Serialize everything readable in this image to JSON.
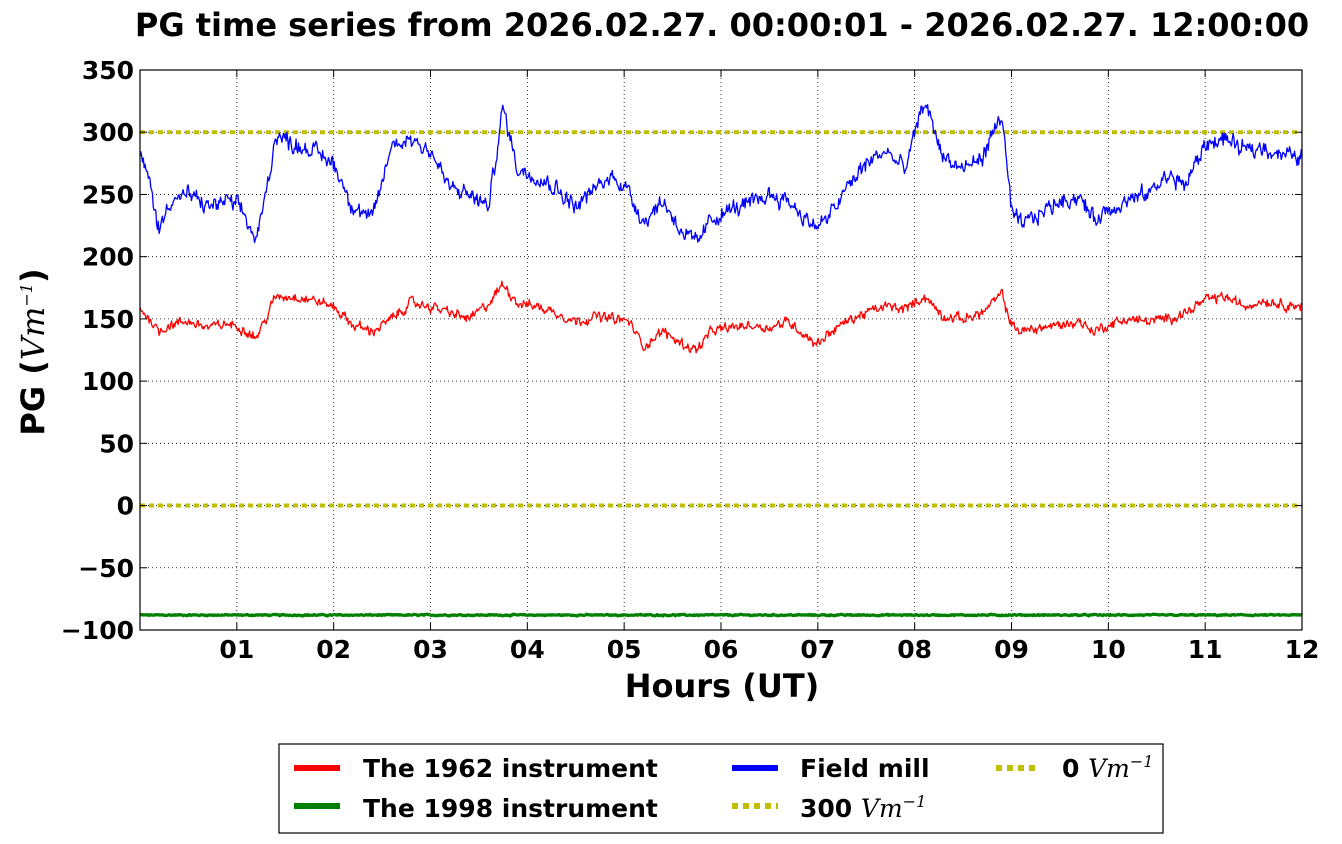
{
  "chart_data": {
    "type": "line",
    "title": "PG time series from 2026.02.27. 00:00:01 - 2026.02.27. 12:00:00",
    "xlabel": "Hours (UT)",
    "ylabel_prefix": "PG (",
    "ylabel_unit_base": "Vm",
    "ylabel_unit_exp": "−1",
    "ylabel_suffix": ")",
    "xlim": [
      0,
      12
    ],
    "ylim": [
      -100,
      350
    ],
    "x_ticks": [
      1,
      2,
      3,
      4,
      5,
      6,
      7,
      8,
      9,
      10,
      11,
      12
    ],
    "x_tick_labels": [
      "01",
      "02",
      "03",
      "04",
      "05",
      "06",
      "07",
      "08",
      "09",
      "10",
      "11",
      "12"
    ],
    "y_ticks": [
      -100,
      -50,
      0,
      50,
      100,
      150,
      200,
      250,
      300,
      350
    ],
    "y_tick_labels": [
      "−100",
      "−50",
      "0",
      "50",
      "100",
      "150",
      "200",
      "250",
      "300",
      "350"
    ],
    "grid": true,
    "legend_position": "below",
    "series": [
      {
        "name": "The 1962 instrument",
        "color": "#ff0000",
        "style": "solid",
        "noise": 6,
        "x": [
          0,
          0.1,
          0.2,
          0.3,
          0.5,
          0.7,
          0.9,
          1.05,
          1.2,
          1.3,
          1.4,
          1.6,
          1.8,
          2.0,
          2.2,
          2.4,
          2.6,
          2.8,
          3.0,
          3.2,
          3.4,
          3.6,
          3.75,
          3.9,
          4.1,
          4.3,
          4.5,
          4.7,
          4.9,
          5.05,
          5.2,
          5.4,
          5.6,
          5.75,
          5.9,
          6.1,
          6.3,
          6.5,
          6.7,
          6.9,
          7.0,
          7.1,
          7.3,
          7.5,
          7.7,
          7.9,
          8.1,
          8.3,
          8.5,
          8.7,
          8.9,
          9.0,
          9.1,
          9.3,
          9.5,
          9.7,
          9.85,
          10.0,
          10.2,
          10.4,
          10.6,
          10.8,
          11.0,
          11.2,
          11.4,
          11.6,
          11.8,
          12.0
        ],
        "y": [
          158,
          150,
          140,
          145,
          148,
          143,
          146,
          143,
          135,
          150,
          168,
          168,
          165,
          160,
          145,
          140,
          150,
          163,
          160,
          155,
          150,
          162,
          178,
          163,
          160,
          155,
          148,
          152,
          150,
          148,
          128,
          140,
          130,
          125,
          140,
          143,
          145,
          143,
          148,
          135,
          130,
          138,
          148,
          155,
          160,
          158,
          168,
          152,
          150,
          155,
          170,
          145,
          140,
          143,
          145,
          148,
          140,
          145,
          150,
          148,
          150,
          155,
          165,
          168,
          160,
          165,
          162,
          160
        ]
      },
      {
        "name": "The 1998 instrument",
        "color": "#008000",
        "style": "solid",
        "noise": 0.8,
        "x": [
          0,
          12
        ],
        "y": [
          -88,
          -88
        ]
      },
      {
        "name": "Field mill",
        "color": "#0000ff",
        "style": "solid",
        "noise": 10,
        "x": [
          0,
          0.1,
          0.2,
          0.3,
          0.5,
          0.7,
          0.9,
          1.05,
          1.2,
          1.3,
          1.4,
          1.6,
          1.8,
          2.0,
          2.2,
          2.4,
          2.6,
          2.8,
          3.0,
          3.2,
          3.4,
          3.6,
          3.75,
          3.9,
          4.1,
          4.3,
          4.5,
          4.7,
          4.9,
          5.05,
          5.2,
          5.4,
          5.6,
          5.75,
          5.9,
          6.1,
          6.3,
          6.5,
          6.7,
          6.9,
          7.0,
          7.1,
          7.3,
          7.5,
          7.7,
          7.9,
          8.1,
          8.3,
          8.5,
          8.7,
          8.9,
          9.0,
          9.1,
          9.3,
          9.5,
          9.7,
          9.85,
          10.0,
          10.2,
          10.4,
          10.6,
          10.8,
          11.0,
          11.2,
          11.4,
          11.6,
          11.8,
          12.0
        ],
        "y": [
          282,
          260,
          220,
          245,
          250,
          240,
          245,
          238,
          212,
          250,
          298,
          290,
          285,
          275,
          240,
          230,
          290,
          295,
          285,
          255,
          250,
          240,
          320,
          270,
          265,
          255,
          240,
          255,
          265,
          252,
          228,
          245,
          220,
          210,
          230,
          238,
          242,
          250,
          245,
          228,
          225,
          230,
          255,
          275,
          285,
          270,
          325,
          280,
          270,
          280,
          315,
          235,
          225,
          235,
          245,
          248,
          230,
          238,
          245,
          250,
          265,
          258,
          290,
          295,
          285,
          288,
          282,
          280
        ]
      },
      {
        "name_prefix": "300 ",
        "name_unit_base": "Vm",
        "name_unit_exp": "−1",
        "color": "#bfbf00",
        "style": "dotted",
        "x": [
          0,
          12
        ],
        "y": [
          300,
          300
        ]
      },
      {
        "name_prefix": "0 ",
        "name_unit_base": "Vm",
        "name_unit_exp": "−1",
        "color": "#bfbf00",
        "style": "dotted",
        "x": [
          0,
          12
        ],
        "y": [
          0,
          0
        ]
      }
    ]
  }
}
